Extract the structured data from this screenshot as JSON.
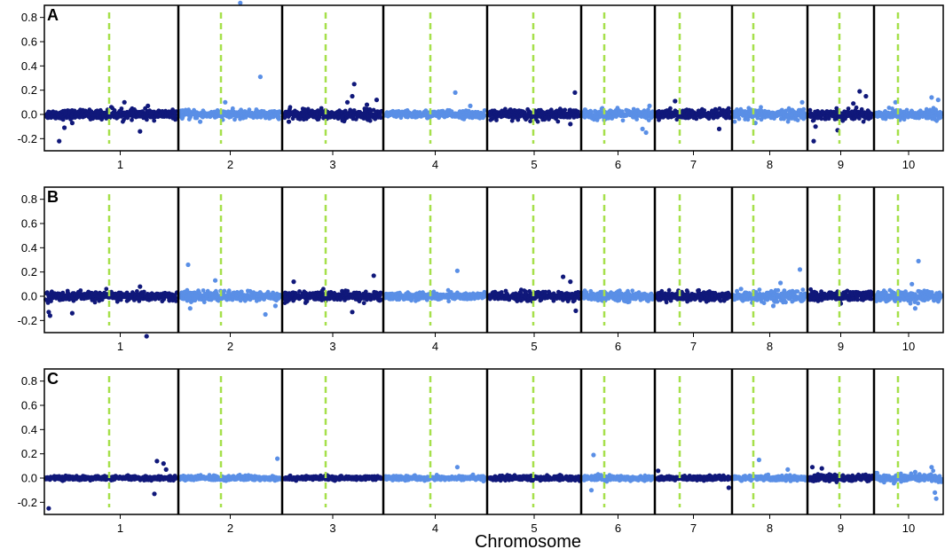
{
  "chart_data": {
    "type": "scatter",
    "xlabel": "Chromosome",
    "ylabel": "",
    "ylim": [
      -0.3,
      0.9
    ],
    "yticks": [
      "-0.2",
      "0.0",
      "0.2",
      "0.4",
      "0.6",
      "0.8"
    ],
    "chromosomes": [
      "1",
      "2",
      "3",
      "4",
      "5",
      "6",
      "7",
      "8",
      "9",
      "10"
    ],
    "colors": {
      "odd_chromosome": "#10187a",
      "even_chromosome": "#5a8fe6",
      "centromere_line": "#a6e04a",
      "boundary_line": "#000000"
    },
    "panels": [
      {
        "label": "A",
        "baseline": 0.0,
        "noise": [
          0.018,
          0.016,
          0.02,
          0.015,
          0.02,
          0.02,
          0.02,
          0.02,
          0.02,
          0.02
        ],
        "outliers": [
          {
            "chromosome": "1",
            "points": [
              [
                0.1,
                -0.22
              ],
              [
                0.14,
                -0.11
              ],
              [
                0.2,
                -0.07
              ],
              [
                0.5,
                0.06
              ],
              [
                0.6,
                0.1
              ],
              [
                0.72,
                -0.14
              ],
              [
                0.78,
                0.07
              ]
            ]
          },
          {
            "chromosome": "2",
            "points": [
              [
                0.45,
                0.1
              ],
              [
                0.6,
                0.92
              ],
              [
                0.8,
                0.31
              ],
              [
                0.2,
                -0.06
              ]
            ]
          },
          {
            "chromosome": "3",
            "points": [
              [
                0.65,
                0.1
              ],
              [
                0.7,
                0.15
              ],
              [
                0.72,
                0.25
              ],
              [
                0.85,
                0.08
              ],
              [
                0.95,
                0.12
              ],
              [
                0.05,
                -0.06
              ],
              [
                0.6,
                -0.05
              ]
            ]
          },
          {
            "chromosome": "4",
            "points": [
              [
                0.7,
                0.18
              ],
              [
                0.85,
                0.07
              ]
            ]
          },
          {
            "chromosome": "5",
            "points": [
              [
                0.95,
                0.18
              ],
              [
                0.9,
                -0.08
              ]
            ]
          },
          {
            "chromosome": "6",
            "points": [
              [
                0.85,
                -0.12
              ],
              [
                0.9,
                -0.15
              ],
              [
                0.95,
                0.07
              ]
            ]
          },
          {
            "chromosome": "7",
            "points": [
              [
                0.25,
                0.11
              ],
              [
                0.85,
                -0.12
              ]
            ]
          },
          {
            "chromosome": "8",
            "points": [
              [
                0.95,
                0.1
              ],
              [
                0.3,
                -0.07
              ]
            ]
          },
          {
            "chromosome": "9",
            "points": [
              [
                0.07,
                -0.22
              ],
              [
                0.1,
                -0.1
              ],
              [
                0.45,
                -0.13
              ],
              [
                0.7,
                0.09
              ],
              [
                0.8,
                0.19
              ],
              [
                0.9,
                0.15
              ]
            ]
          },
          {
            "chromosome": "10",
            "points": [
              [
                0.85,
                0.14
              ],
              [
                0.95,
                0.12
              ],
              [
                0.3,
                0.1
              ]
            ]
          }
        ]
      },
      {
        "label": "B",
        "baseline": 0.0,
        "noise": [
          0.018,
          0.02,
          0.018,
          0.015,
          0.018,
          0.018,
          0.018,
          0.022,
          0.02,
          0.022
        ],
        "outliers": [
          {
            "chromosome": "1",
            "points": [
              [
                0.02,
                -0.13
              ],
              [
                0.03,
                -0.16
              ],
              [
                0.2,
                -0.14
              ],
              [
                0.77,
                -0.33
              ],
              [
                0.72,
                0.08
              ]
            ]
          },
          {
            "chromosome": "2",
            "points": [
              [
                0.08,
                0.26
              ],
              [
                0.1,
                -0.1
              ],
              [
                0.35,
                0.13
              ],
              [
                0.85,
                -0.15
              ],
              [
                0.95,
                -0.08
              ]
            ]
          },
          {
            "chromosome": "3",
            "points": [
              [
                0.1,
                0.12
              ],
              [
                0.7,
                -0.13
              ],
              [
                0.92,
                0.17
              ]
            ]
          },
          {
            "chromosome": "4",
            "points": [
              [
                0.72,
                0.21
              ]
            ]
          },
          {
            "chromosome": "5",
            "points": [
              [
                0.82,
                0.16
              ],
              [
                0.9,
                0.12
              ],
              [
                0.96,
                -0.12
              ]
            ]
          },
          {
            "chromosome": "6",
            "points": []
          },
          {
            "chromosome": "7",
            "points": []
          },
          {
            "chromosome": "8",
            "points": [
              [
                0.1,
                0.06
              ],
              [
                0.65,
                0.11
              ],
              [
                0.92,
                0.22
              ],
              [
                0.55,
                -0.08
              ]
            ]
          },
          {
            "chromosome": "9",
            "points": [
              [
                0.5,
                -0.06
              ]
            ]
          },
          {
            "chromosome": "10",
            "points": [
              [
                0.55,
                0.1
              ],
              [
                0.65,
                0.29
              ],
              [
                0.6,
                -0.1
              ]
            ]
          }
        ]
      },
      {
        "label": "C",
        "baseline": 0.0,
        "noise": [
          0.008,
          0.01,
          0.008,
          0.008,
          0.01,
          0.01,
          0.008,
          0.01,
          0.012,
          0.015
        ],
        "outliers": [
          {
            "chromosome": "1",
            "points": [
              [
                0.02,
                -0.25
              ],
              [
                0.83,
                -0.13
              ],
              [
                0.85,
                0.14
              ],
              [
                0.9,
                0.12
              ],
              [
                0.92,
                0.07
              ]
            ]
          },
          {
            "chromosome": "2",
            "points": [
              [
                0.97,
                0.16
              ]
            ]
          },
          {
            "chromosome": "3",
            "points": []
          },
          {
            "chromosome": "4",
            "points": [
              [
                0.72,
                0.09
              ]
            ]
          },
          {
            "chromosome": "5",
            "points": []
          },
          {
            "chromosome": "6",
            "points": [
              [
                0.15,
                0.19
              ],
              [
                0.12,
                -0.1
              ]
            ]
          },
          {
            "chromosome": "7",
            "points": [
              [
                0.02,
                0.06
              ],
              [
                0.98,
                -0.08
              ]
            ]
          },
          {
            "chromosome": "8",
            "points": [
              [
                0.35,
                0.15
              ],
              [
                0.75,
                0.07
              ]
            ]
          },
          {
            "chromosome": "9",
            "points": [
              [
                0.05,
                0.09
              ],
              [
                0.2,
                0.08
              ]
            ]
          },
          {
            "chromosome": "10",
            "points": [
              [
                0.6,
                0.05
              ],
              [
                0.85,
                0.09
              ],
              [
                0.9,
                -0.12
              ],
              [
                0.92,
                -0.17
              ]
            ]
          }
        ]
      }
    ]
  }
}
